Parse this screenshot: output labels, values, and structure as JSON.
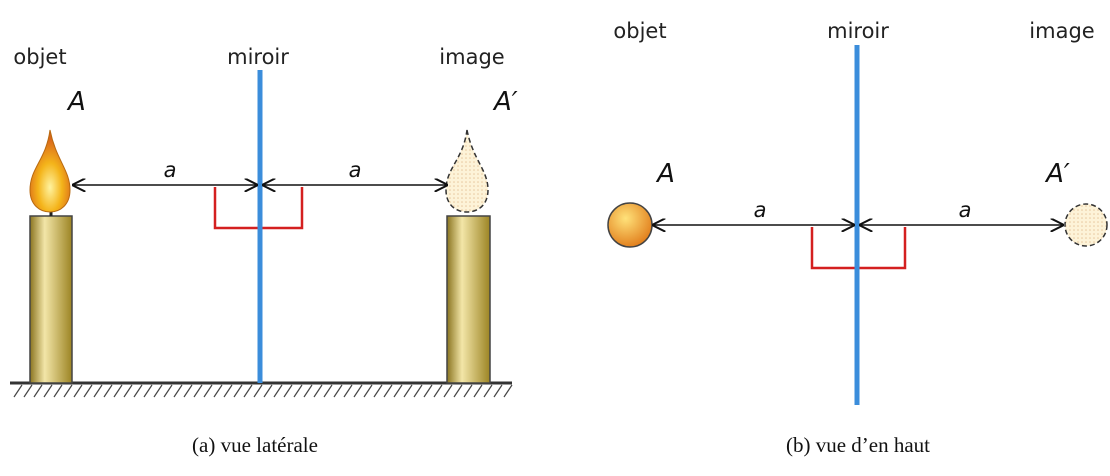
{
  "panels": [
    {
      "labels": {
        "object": "objet",
        "mirror": "miroir",
        "image": "image"
      },
      "point": "A",
      "image_point": "A′",
      "distances": [
        "a",
        "a"
      ],
      "caption": "(a) vue latérale"
    },
    {
      "labels": {
        "object": "objet",
        "mirror": "miroir",
        "image": "image"
      },
      "point": "A",
      "image_point": "A′",
      "distances": [
        "a",
        "a"
      ],
      "caption": "(b) vue d’en haut"
    }
  ]
}
